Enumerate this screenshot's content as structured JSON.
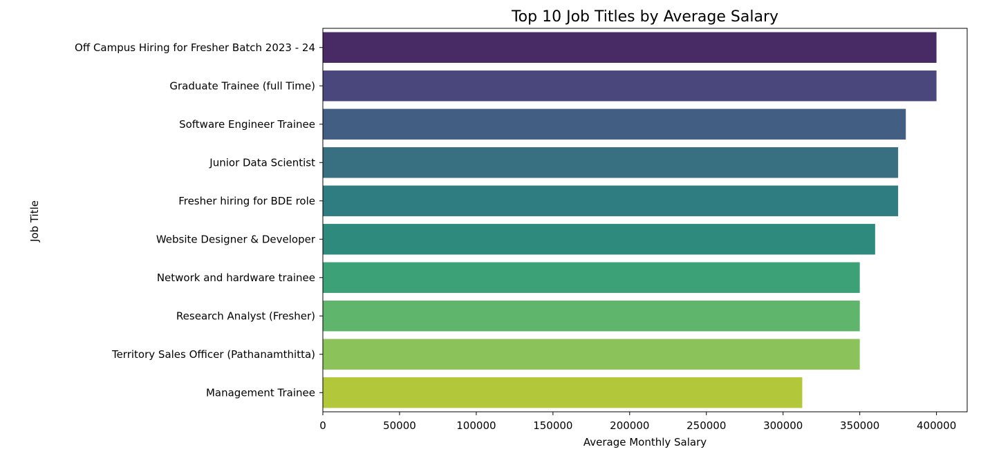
{
  "chart_data": {
    "type": "bar",
    "orientation": "horizontal",
    "title": "Top 10 Job Titles by Average Salary",
    "xlabel": "Average Monthly Salary",
    "ylabel": "Job Title",
    "xlim": [
      0,
      420000
    ],
    "xticks": [
      0,
      50000,
      100000,
      150000,
      200000,
      250000,
      300000,
      350000,
      400000
    ],
    "xtick_labels": [
      "0",
      "50000",
      "100000",
      "150000",
      "200000",
      "250000",
      "300000",
      "350000",
      "400000"
    ],
    "grid": false,
    "categories": [
      "Off Campus Hiring for Fresher Batch 2023 - 24",
      "Graduate Trainee (full Time)",
      "Software Engineer Trainee",
      "Junior Data Scientist",
      "Fresher hiring for BDE role",
      "Website Designer & Developer",
      "Network and hardware trainee",
      "Research Analyst (Fresher)",
      "Territory Sales Officer (Pathanamthitta)",
      "Management Trainee"
    ],
    "values": [
      400000,
      400000,
      380000,
      375000,
      375000,
      360000,
      350000,
      350000,
      350000,
      312500
    ],
    "colors": [
      "#482a65",
      "#4a477d",
      "#425e82",
      "#386f81",
      "#2f7d81",
      "#2e8a7d",
      "#3da177",
      "#5fb56c",
      "#8bc35a",
      "#b2c739"
    ]
  }
}
